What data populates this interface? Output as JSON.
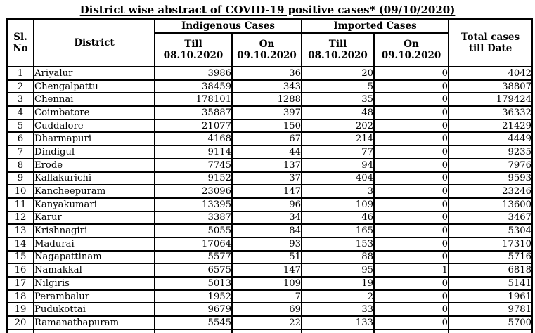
{
  "title": "District wise abstract of COVID-19 positive cases* (09/10/2020)",
  "colors": {
    "text": "#000000",
    "border": "#000000",
    "background": "#ffffff"
  },
  "table": {
    "headers": {
      "sl_no": "Sl.\nNo",
      "district": "District",
      "indigenous_group": "Indigenous Cases",
      "imported_group": "Imported Cases",
      "till_label": "Till\n08.10.2020",
      "on_label": "On\n09.10.2020",
      "total_label": "Total cases\ntill Date"
    },
    "rows": [
      {
        "sl": "1",
        "district": "Ariyalur",
        "indig_till": "3986",
        "indig_on": "36",
        "imp_till": "20",
        "imp_on": "0",
        "total": "4042"
      },
      {
        "sl": "2",
        "district": "Chengalpattu",
        "indig_till": "38459",
        "indig_on": "343",
        "imp_till": "5",
        "imp_on": "0",
        "total": "38807"
      },
      {
        "sl": "3",
        "district": "Chennai",
        "indig_till": "178101",
        "indig_on": "1288",
        "imp_till": "35",
        "imp_on": "0",
        "total": "179424"
      },
      {
        "sl": "4",
        "district": "Coimbatore",
        "indig_till": "35887",
        "indig_on": "397",
        "imp_till": "48",
        "imp_on": "0",
        "total": "36332"
      },
      {
        "sl": "5",
        "district": "Cuddalore",
        "indig_till": "21077",
        "indig_on": "150",
        "imp_till": "202",
        "imp_on": "0",
        "total": "21429"
      },
      {
        "sl": "6",
        "district": "Dharmapuri",
        "indig_till": "4168",
        "indig_on": "67",
        "imp_till": "214",
        "imp_on": "0",
        "total": "4449"
      },
      {
        "sl": "7",
        "district": "Dindigul",
        "indig_till": "9114",
        "indig_on": "44",
        "imp_till": "77",
        "imp_on": "0",
        "total": "9235"
      },
      {
        "sl": "8",
        "district": "Erode",
        "indig_till": "7745",
        "indig_on": "137",
        "imp_till": "94",
        "imp_on": "0",
        "total": "7976"
      },
      {
        "sl": "9",
        "district": "Kallakurichi",
        "indig_till": "9152",
        "indig_on": "37",
        "imp_till": "404",
        "imp_on": "0",
        "total": "9593"
      },
      {
        "sl": "10",
        "district": "Kancheepuram",
        "indig_till": "23096",
        "indig_on": "147",
        "imp_till": "3",
        "imp_on": "0",
        "total": "23246"
      },
      {
        "sl": "11",
        "district": "Kanyakumari",
        "indig_till": "13395",
        "indig_on": "96",
        "imp_till": "109",
        "imp_on": "0",
        "total": "13600"
      },
      {
        "sl": "12",
        "district": "Karur",
        "indig_till": "3387",
        "indig_on": "34",
        "imp_till": "46",
        "imp_on": "0",
        "total": "3467"
      },
      {
        "sl": "13",
        "district": "Krishnagiri",
        "indig_till": "5055",
        "indig_on": "84",
        "imp_till": "165",
        "imp_on": "0",
        "total": "5304"
      },
      {
        "sl": "14",
        "district": "Madurai",
        "indig_till": "17064",
        "indig_on": "93",
        "imp_till": "153",
        "imp_on": "0",
        "total": "17310"
      },
      {
        "sl": "15",
        "district": "Nagapattinam",
        "indig_till": "5577",
        "indig_on": "51",
        "imp_till": "88",
        "imp_on": "0",
        "total": "5716"
      },
      {
        "sl": "16",
        "district": "Namakkal",
        "indig_till": "6575",
        "indig_on": "147",
        "imp_till": "95",
        "imp_on": "1",
        "total": "6818"
      },
      {
        "sl": "17",
        "district": "Nilgiris",
        "indig_till": "5013",
        "indig_on": "109",
        "imp_till": "19",
        "imp_on": "0",
        "total": "5141"
      },
      {
        "sl": "18",
        "district": "Perambalur",
        "indig_till": "1952",
        "indig_on": "7",
        "imp_till": "2",
        "imp_on": "0",
        "total": "1961"
      },
      {
        "sl": "19",
        "district": "Pudukottai",
        "indig_till": "9679",
        "indig_on": "69",
        "imp_till": "33",
        "imp_on": "0",
        "total": "9781"
      },
      {
        "sl": "20",
        "district": "Ramanathapuram",
        "indig_till": "5545",
        "indig_on": "22",
        "imp_till": "133",
        "imp_on": "0",
        "total": "5700"
      }
    ]
  }
}
